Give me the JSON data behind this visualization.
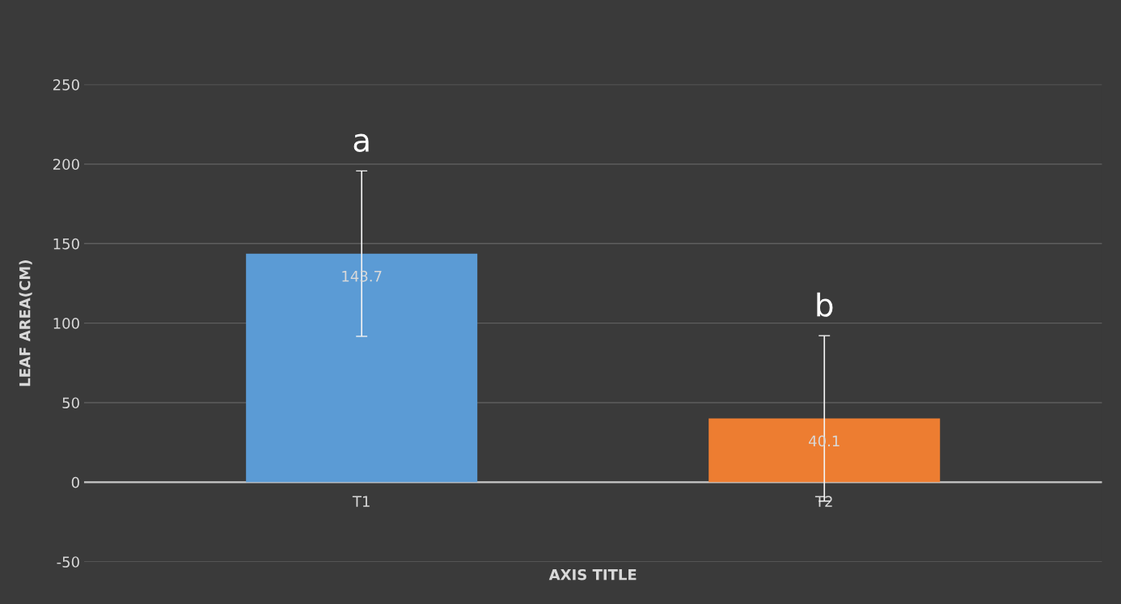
{
  "chart_data": {
    "type": "bar",
    "xlabel": "AXIS TITLE",
    "ylabel": "LEAF AREA(CM)",
    "categories": [
      "T1",
      "T2"
    ],
    "values": [
      143.7,
      40.1
    ],
    "colors": [
      "#5b9bd5",
      "#ed7d31"
    ],
    "errors": [
      52,
      52
    ],
    "data_labels": true,
    "annotations": [
      "a",
      "b"
    ],
    "ylim": [
      -50,
      250
    ],
    "yticks": [
      -50,
      0,
      50,
      100,
      150,
      200,
      250
    ],
    "grid": "y"
  }
}
